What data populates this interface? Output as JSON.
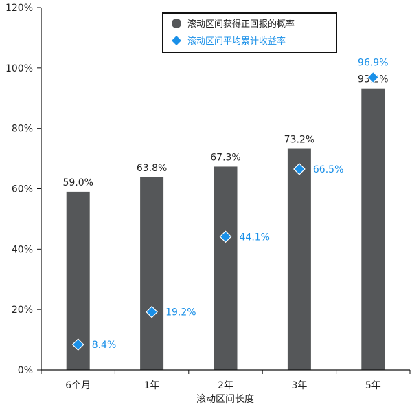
{
  "chart_data": {
    "type": "bar",
    "categories": [
      "6个月",
      "1年",
      "2年",
      "3年",
      "5年"
    ],
    "xlabel": "滚动区间长度",
    "ylabel": "",
    "ylim": [
      0,
      120
    ],
    "y_ticks": [
      "0%",
      "20%",
      "40%",
      "60%",
      "80%",
      "100%",
      "120%"
    ],
    "grid": false,
    "legend_position": "top-center",
    "series": [
      {
        "name": "滚动区间获得正回报的概率",
        "type": "bar",
        "color": "#555759",
        "values": [
          59.0,
          63.8,
          67.3,
          73.2,
          93.2
        ],
        "labels": [
          "59.0%",
          "63.8%",
          "67.3%",
          "73.2%",
          "93.2%"
        ]
      },
      {
        "name": "滚动区间平均累计收益率",
        "type": "scatter",
        "marker": "diamond",
        "color": "#1a90e8",
        "values": [
          8.4,
          19.2,
          44.1,
          66.5,
          96.9
        ],
        "labels": [
          "8.4%",
          "19.2%",
          "44.1%",
          "66.5%",
          "96.9%"
        ]
      }
    ]
  }
}
